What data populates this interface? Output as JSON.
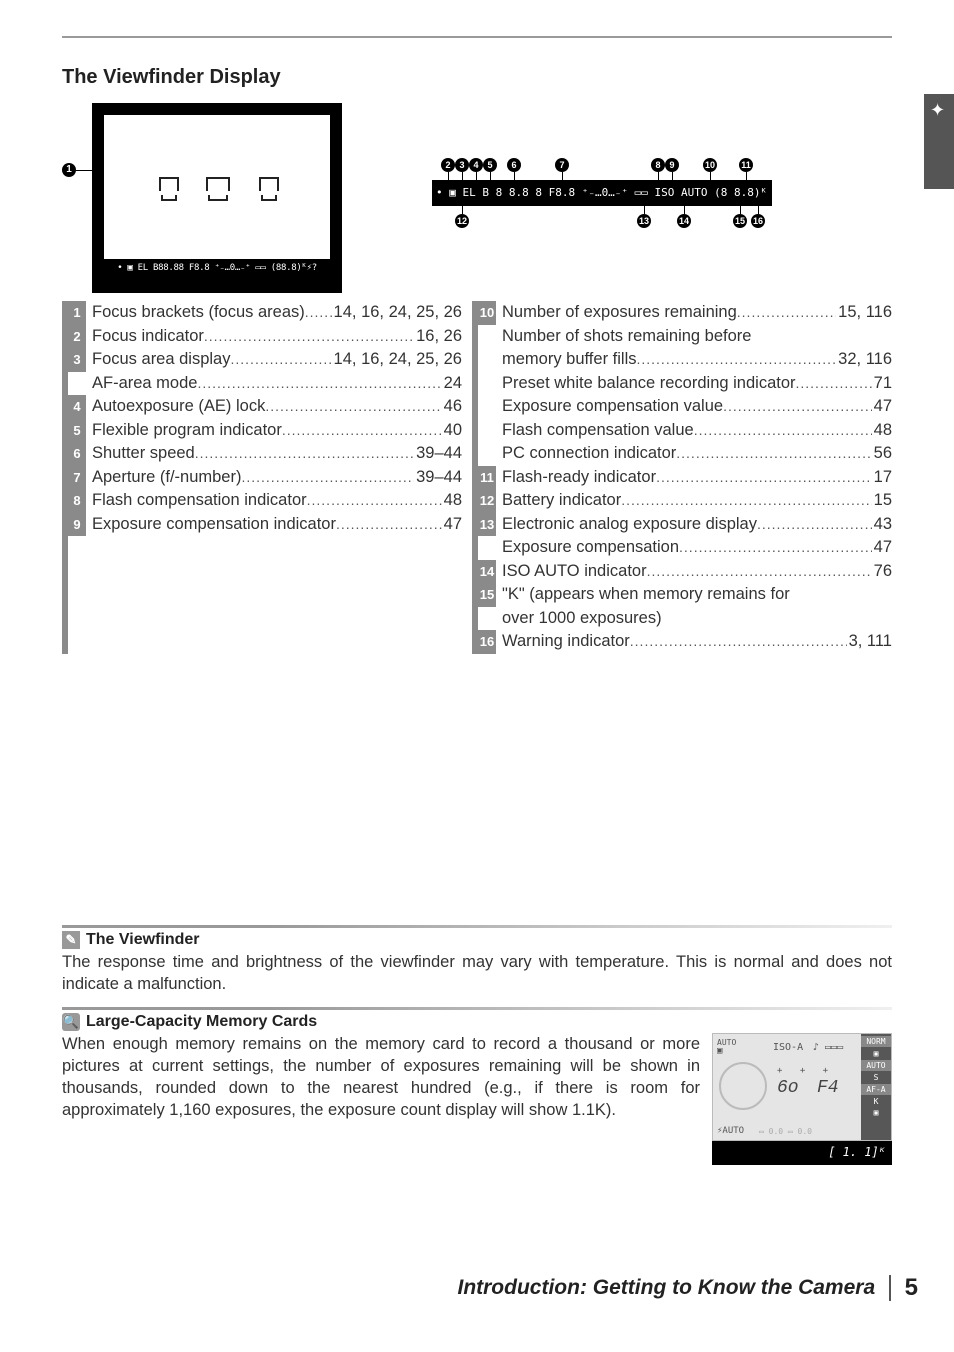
{
  "title": "The Viewfinder Display",
  "lcd_strip_text": "• ▣ EL B 8 8.8 8 F8.8 ⁺₋…0…₋⁺ ▭▭ ISO AUTO (8 8.8)ᴷ ⚡ ?",
  "vf_strip_text": "• ▣ EL B88.88 F8.8 ⁺₋…0…₋⁺ ▭▭ (88.8)ᴷ⚡?",
  "top_callouts": [
    "2",
    "3",
    "4",
    "5",
    "6",
    "7",
    "8",
    "9",
    "10",
    "11"
  ],
  "bot_callouts": [
    "12",
    "13",
    "14",
    "15",
    "16"
  ],
  "left_items": [
    {
      "n": "1",
      "label": "Focus brackets (focus areas)",
      "pg": "14, 16, 24, 25, 26"
    },
    {
      "n": "2",
      "label": "Focus indicator",
      "pg": "16, 26"
    },
    {
      "n": "3",
      "label": "Focus area display",
      "pg": "14, 16, 24, 25, 26"
    },
    {
      "n": "",
      "label": "AF-area mode",
      "pg": "24"
    },
    {
      "n": "4",
      "label": "Autoexposure (AE) lock",
      "pg": "46"
    },
    {
      "n": "5",
      "label": "Flexible program indicator",
      "pg": "40"
    },
    {
      "n": "6",
      "label": "Shutter speed",
      "pg": "39–44"
    },
    {
      "n": "7",
      "label": "Aperture (f/-number)",
      "pg": "39–44"
    },
    {
      "n": "8",
      "label": "Flash compensation indicator",
      "pg": "48"
    },
    {
      "n": "9",
      "label": "Exposure compensation indicator",
      "pg": "47"
    }
  ],
  "right_items": [
    {
      "n": "10",
      "label": "Number of exposures remaining",
      "pg": "15, 116"
    },
    {
      "n": "",
      "label": "Number of shots remaining before",
      "pg": "",
      "noleader": true
    },
    {
      "n": "",
      "label": "memory buffer fills",
      "pg": "32, 116"
    },
    {
      "n": "",
      "label": "Preset white balance recording indicator",
      "pg": "71"
    },
    {
      "n": "",
      "label": "Exposure compensation value",
      "pg": "47"
    },
    {
      "n": "",
      "label": "Flash compensation value",
      "pg": "48"
    },
    {
      "n": "",
      "label": "PC connection indicator",
      "pg": "56"
    },
    {
      "n": "11",
      "label": "Flash-ready indicator",
      "pg": "17"
    },
    {
      "n": "12",
      "label": "Battery indicator",
      "pg": "15"
    },
    {
      "n": "13",
      "label": "Electronic analog exposure display",
      "pg": "43"
    },
    {
      "n": "",
      "label": "Exposure compensation",
      "pg": "47"
    },
    {
      "n": "14",
      "label": "ISO AUTO indicator",
      "pg": "76"
    },
    {
      "n": "15",
      "label": "\"K\" (appears when memory remains for",
      "pg": "",
      "noleader": true
    },
    {
      "n": "",
      "label": "over 1000 exposures)",
      "pg": "",
      "noleader": true
    },
    {
      "n": "16",
      "label": "Warning indicator",
      "pg": "3, 111"
    }
  ],
  "note1": {
    "title": "The Viewfinder",
    "text": "The response time and brightness of the viewfinder may vary with temperature.  This is normal and does not indicate a malfunction."
  },
  "note2": {
    "title": "Large-Capacity Memory Cards",
    "text": "When enough memory remains on the memory card to record a thousand or more pictures at current settings, the number of exposures remaining will be shown in thousands, rounded down to the nearest hundred (e.g., if there is room for approximately 1,160 exposures, the exposure count display will show 1.1K)."
  },
  "mini_lcd": {
    "top_left_auto": "AUTO",
    "iso": "ISO-A",
    "beep": "♪ ▭▭▭",
    "shutter": "6o",
    "aperture": "F4",
    "flash": "⚡AUTO",
    "right_labels": [
      "NORM",
      "▣",
      "AUTO",
      "S",
      "AF-A",
      "K",
      "▣"
    ],
    "bottom": "[   1. 1]ᴷ"
  },
  "footer": {
    "chapter": "Introduction: Getting to Know the Camera",
    "page": "5"
  }
}
